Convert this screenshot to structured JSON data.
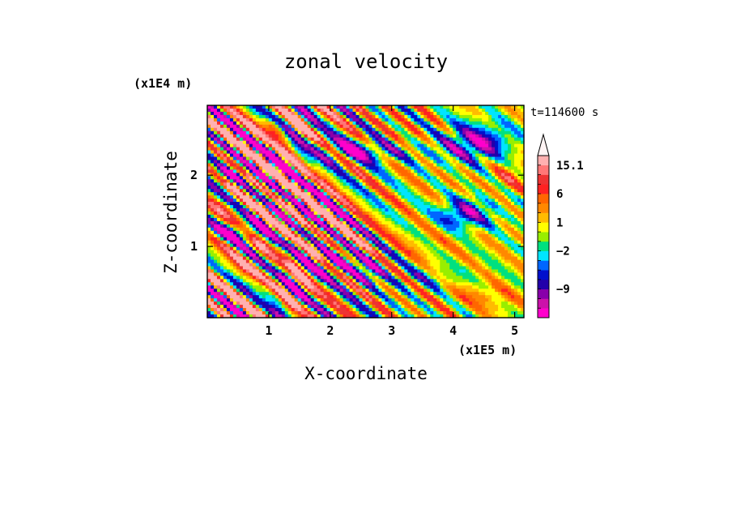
{
  "chart_data": {
    "type": "heatmap",
    "title": "zonal velocity",
    "xlabel": "X-coordinate",
    "ylabel": "Z-coordinate",
    "x_scale_label": "(x1E5 m)",
    "y_scale_label": "(x1E4 m)",
    "time_label": "t=114600 s",
    "xlim": [
      0,
      5.15
    ],
    "ylim": [
      0,
      2.98
    ],
    "x_ticks": [
      {
        "value": 1,
        "label": "1"
      },
      {
        "value": 2,
        "label": "2"
      },
      {
        "value": 3,
        "label": "3"
      },
      {
        "value": 4,
        "label": "4"
      },
      {
        "value": 5,
        "label": "5"
      }
    ],
    "y_ticks": [
      {
        "value": 1,
        "label": "1"
      },
      {
        "value": 2,
        "label": "2"
      }
    ],
    "colorbar": {
      "colors": [
        "#ff00cc",
        "#cc11aa",
        "#8800aa",
        "#2200aa",
        "#0010cc",
        "#0066ff",
        "#00e5ff",
        "#00e080",
        "#99ee00",
        "#ffff00",
        "#ffbb00",
        "#ff8800",
        "#ff6600",
        "#ff2222",
        "#ee3333",
        "#ff7777",
        "#ffb0b0"
      ],
      "over_color": "#fff4f4",
      "labels": [
        {
          "value": "15.1",
          "level": 16
        },
        {
          "value": "6",
          "level": 13
        },
        {
          "value": "1",
          "level": 10
        },
        {
          "value": "−2",
          "level": 7
        },
        {
          "value": "−9",
          "level": 3
        }
      ]
    },
    "field_pattern": {
      "wave_stripes": [
        {
          "x0": 0.0,
          "z0": 2.05,
          "amp": 3.2
        },
        {
          "x0": 0.35,
          "z0": 2.3,
          "amp": -2.6
        },
        {
          "x0": 0.6,
          "z0": 2.65,
          "amp": 3.0
        },
        {
          "x0": 0.9,
          "z0": 1.6,
          "amp": -2.4
        }
      ],
      "blobs": [
        {
          "x": 4.2,
          "z": 1.45,
          "rx": 0.45,
          "rz": 0.22,
          "amp": -12
        },
        {
          "x": 4.35,
          "z": 2.45,
          "rx": 0.6,
          "rz": 0.28,
          "amp": -13
        },
        {
          "x": 2.5,
          "z": 2.35,
          "rx": 0.75,
          "rz": 0.18,
          "amp": -11
        },
        {
          "x": 2.05,
          "z": 0.78,
          "rx": 0.28,
          "rz": 0.2,
          "amp": -10
        },
        {
          "x": 2.6,
          "z": 0.68,
          "rx": 0.3,
          "rz": 0.22,
          "amp": -10
        },
        {
          "x": 0.45,
          "z": 1.2,
          "rx": 0.45,
          "rz": 0.12,
          "amp": -10
        },
        {
          "x": 0.3,
          "z": 2.0,
          "rx": 0.3,
          "rz": 0.12,
          "amp": -9
        },
        {
          "x": 3.6,
          "z": 0.55,
          "rx": 0.55,
          "rz": 0.18,
          "amp": -4
        },
        {
          "x": 3.6,
          "z": 1.05,
          "rx": 0.8,
          "rz": 0.3,
          "amp": 2
        },
        {
          "x": 4.5,
          "z": 0.3,
          "rx": 0.7,
          "rz": 0.2,
          "amp": 4
        },
        {
          "x": 4.9,
          "z": 2.0,
          "rx": 0.3,
          "rz": 0.25,
          "amp": 5
        },
        {
          "x": 0.5,
          "z": 0.7,
          "rx": 0.6,
          "rz": 0.18,
          "amp": 4
        },
        {
          "x": 1.0,
          "z": 2.65,
          "rx": 0.5,
          "rz": 0.15,
          "amp": 5
        },
        {
          "x": 0.4,
          "z": 1.55,
          "rx": 0.4,
          "rz": 0.12,
          "amp": 4
        },
        {
          "x": 3.2,
          "z": 2.55,
          "rx": 0.5,
          "rz": 0.2,
          "amp": 3
        },
        {
          "x": 4.0,
          "z": 1.95,
          "rx": 0.45,
          "rz": 0.22,
          "amp": 1
        }
      ]
    }
  }
}
